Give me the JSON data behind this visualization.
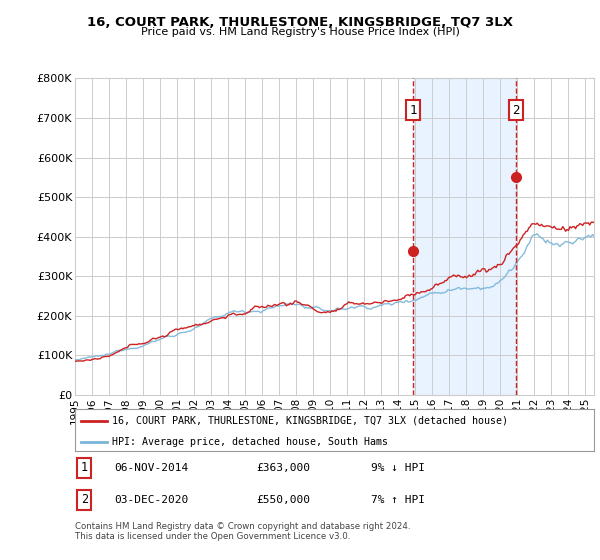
{
  "title": "16, COURT PARK, THURLESTONE, KINGSBRIDGE, TQ7 3LX",
  "subtitle": "Price paid vs. HM Land Registry's House Price Index (HPI)",
  "ylabel_ticks": [
    "£0",
    "£100K",
    "£200K",
    "£300K",
    "£400K",
    "£500K",
    "£600K",
    "£700K",
    "£800K"
  ],
  "ylim": [
    0,
    800000
  ],
  "xlim_start": 1995.0,
  "xlim_end": 2025.5,
  "xtick_years": [
    1995,
    1996,
    1997,
    1998,
    1999,
    2000,
    2001,
    2002,
    2003,
    2004,
    2005,
    2006,
    2007,
    2008,
    2009,
    2010,
    2011,
    2012,
    2013,
    2014,
    2015,
    2016,
    2017,
    2018,
    2019,
    2020,
    2021,
    2022,
    2023,
    2024,
    2025
  ],
  "hpi_color": "#7ab4d8",
  "price_color": "#cc2222",
  "vline_color": "#cc2222",
  "vline_style": "--",
  "transaction1_year": 2014.85,
  "transaction2_year": 2020.92,
  "marker1_y": 363000,
  "marker2_y": 550000,
  "legend_label1": "16, COURT PARK, THURLESTONE, KINGSBRIDGE, TQ7 3LX (detached house)",
  "legend_label2": "HPI: Average price, detached house, South Hams",
  "note1_num": "1",
  "note1_date": "06-NOV-2014",
  "note1_price": "£363,000",
  "note1_hpi": "9% ↓ HPI",
  "note2_num": "2",
  "note2_date": "03-DEC-2020",
  "note2_price": "£550,000",
  "note2_hpi": "7% ↑ HPI",
  "footer": "Contains HM Land Registry data © Crown copyright and database right 2024.\nThis data is licensed under the Open Government Licence v3.0.",
  "bg_color": "#ffffff",
  "plot_bg_color": "#ffffff",
  "grid_color": "#cccccc",
  "shade_color": "#ddeeff"
}
